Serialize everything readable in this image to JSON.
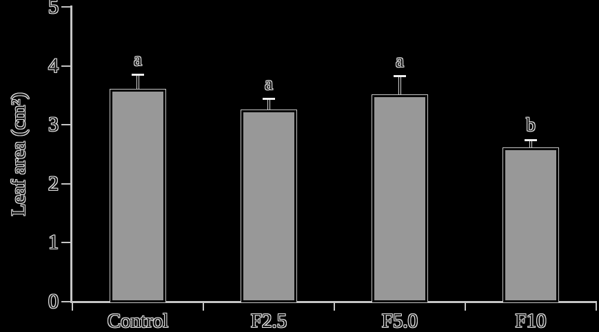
{
  "chart_data": {
    "type": "bar",
    "title": "",
    "categories": [
      "Control",
      "F2.5",
      "F5.0",
      "F10"
    ],
    "values": [
      3.6,
      3.25,
      3.5,
      2.6
    ],
    "errors": [
      0.25,
      0.2,
      0.33,
      0.15
    ],
    "sig_letters": [
      "a",
      "a",
      "a",
      "b"
    ],
    "xlabel": "",
    "ylabel": "Leaf area (cm²)",
    "ylim": [
      0,
      5
    ],
    "yticks": [
      0,
      1,
      2,
      3,
      4,
      5
    ],
    "grid": false,
    "legend": false,
    "layout_hints": {
      "background": "black",
      "bar_style": "gray fill, black edge",
      "errorbars": "upper only, capped",
      "tick_style": "y ticks left of axis, x ticks at category boundaries below baseline"
    },
    "colors": {
      "background": "#000000",
      "bar_fill": "#989898",
      "bar_border": "#000000",
      "bar_halo": "#c9c9c9",
      "axis": "#c6c6c6",
      "text_outline": "#e6e6e6",
      "errorbar_cap": "#f0f0f0",
      "errorbar_halo": "#d9d9d9"
    }
  }
}
